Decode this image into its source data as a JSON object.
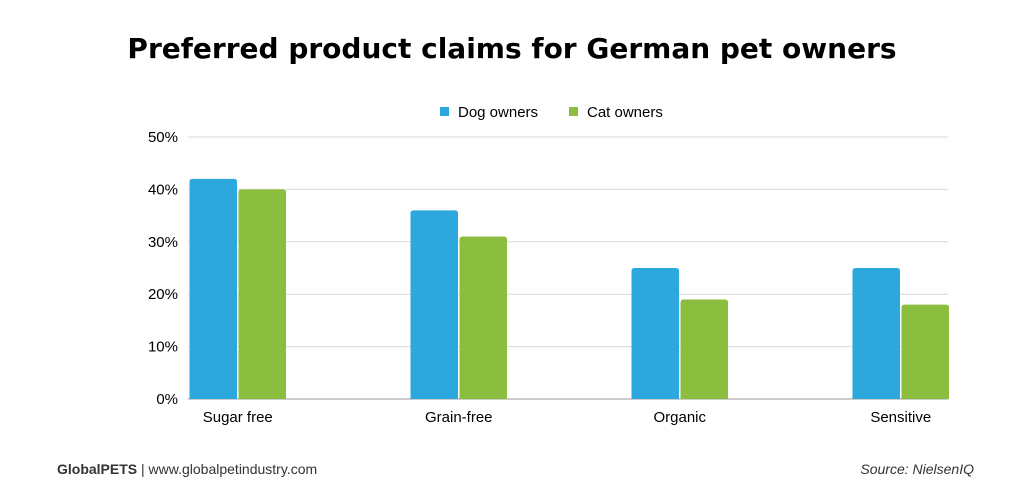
{
  "chart_data": {
    "type": "bar",
    "title": "Preferred product claims for German pet owners",
    "categories": [
      "Sugar free",
      "Grain-free",
      "Organic",
      "Sensitive"
    ],
    "series": [
      {
        "name": "Dog owners",
        "color": "#2ca8de",
        "values": [
          42,
          36,
          25,
          25
        ]
      },
      {
        "name": "Cat owners",
        "color": "#8bbd3f",
        "values": [
          40,
          31,
          19,
          18
        ]
      }
    ],
    "ylim": [
      0,
      50
    ],
    "yticks": [
      "0%",
      "10%",
      "20%",
      "30%",
      "40%",
      "50%"
    ],
    "grid": true,
    "legend": "top-center"
  },
  "footer": {
    "brand": "GlobalPETS",
    "separator": "|",
    "website": "www.globalpetindustry.com",
    "source": "Source: NielsenIQ"
  }
}
